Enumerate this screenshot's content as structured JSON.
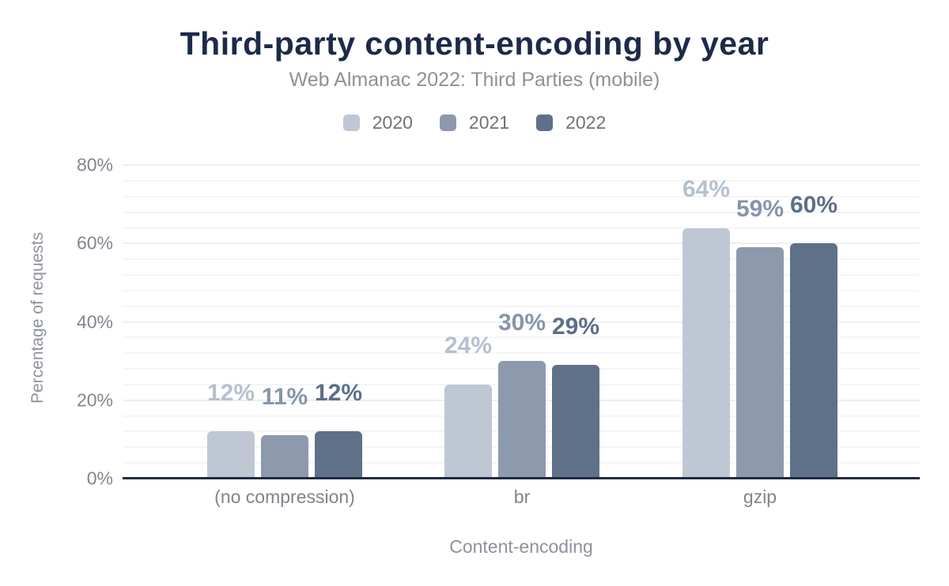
{
  "title": "Third-party content-encoding by year",
  "subtitle": "Web Almanac 2022: Third Parties (mobile)",
  "chart_data": {
    "type": "bar",
    "title": "Third-party content-encoding by year",
    "subtitle": "Web Almanac 2022: Third Parties (mobile)",
    "categories": [
      "(no compression)",
      "br",
      "gzip"
    ],
    "series": [
      {
        "name": "2020",
        "color": "#bfc7d5",
        "label_color": "#b5c0d1",
        "values": [
          12,
          24,
          64
        ],
        "labels": [
          "12%",
          "24%",
          "64%"
        ]
      },
      {
        "name": "2021",
        "color": "#8d99ad",
        "label_color": "#8795ab",
        "values": [
          11,
          30,
          59
        ],
        "labels": [
          "11%",
          "30%",
          "59%"
        ]
      },
      {
        "name": "2022",
        "color": "#5f7089",
        "label_color": "#5d6e8a",
        "values": [
          12,
          29,
          60
        ],
        "labels": [
          "12%",
          "29%",
          "60%"
        ]
      }
    ],
    "xlabel": "Content-encoding",
    "ylabel": "Percentage of requests",
    "ylim": [
      0,
      80
    ],
    "yticks": [
      {
        "value": 0,
        "label": "0%"
      },
      {
        "value": 20,
        "label": "20%"
      },
      {
        "value": 40,
        "label": "40%"
      },
      {
        "value": 60,
        "label": "60%"
      },
      {
        "value": 80,
        "label": "80%"
      }
    ],
    "grid": {
      "minor_step": 4,
      "major_step": 20,
      "orientation": "horizontal"
    },
    "legend_position": "top"
  },
  "colors": {
    "title_text": "#1d2a49",
    "subtitle_text": "#8e9199",
    "legend_text": "#6f7277",
    "tick_text": "#81868f",
    "axis_title_text": "#8d929b",
    "axis_line": "#1f2b45",
    "grid_minor": "#f4f5f7",
    "grid_major": "#edeff2",
    "background": "#ffffff"
  }
}
